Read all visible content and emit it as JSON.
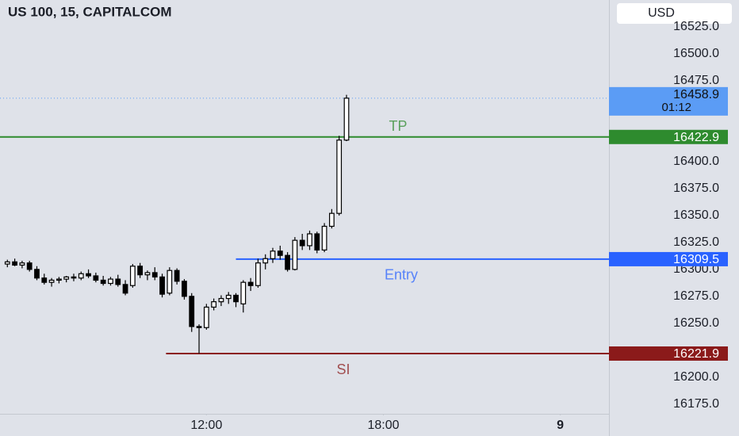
{
  "chart_data": {
    "type": "candlestick",
    "title": "US 100, 15, CAPITALCOM",
    "currency": "USD",
    "x": [
      5.25,
      5.5,
      5.75,
      6,
      6.25,
      6.5,
      6.75,
      7,
      7.25,
      7.5,
      7.75,
      8,
      8.25,
      8.5,
      8.75,
      9,
      9.25,
      9.5,
      9.75,
      10,
      10.25,
      10.5,
      10.75,
      11,
      11.25,
      11.5,
      11.75,
      12,
      12.25,
      12.5,
      12.75,
      13,
      13.25,
      13.5,
      13.75,
      14,
      14.25,
      14.5,
      14.75,
      15,
      15.25,
      15.5,
      15.75,
      16,
      16.25,
      16.5,
      16.75
    ],
    "open": [
      16305,
      16307,
      16304,
      16306,
      16300,
      16292,
      16288,
      16290,
      16291,
      16293,
      16292,
      16296,
      16294,
      16290,
      16287,
      16291,
      16286,
      16285,
      16303,
      16295,
      16297,
      16293,
      16278,
      16299,
      16289,
      16275,
      16247,
      16246,
      16265,
      16270,
      16273,
      16276,
      16268,
      16288,
      16285,
      16306,
      16310,
      16317,
      16313,
      16300,
      16327,
      16322,
      16333,
      16318,
      16340,
      16352,
      16420
    ],
    "high": [
      16309,
      16310,
      16308,
      16308,
      16303,
      16296,
      16292,
      16293,
      16294,
      16296,
      16298,
      16300,
      16297,
      16294,
      16293,
      16295,
      16290,
      16305,
      16306,
      16299,
      16302,
      16296,
      16302,
      16301,
      16291,
      16278,
      16249,
      16268,
      16273,
      16276,
      16279,
      16278,
      16290,
      16292,
      16310,
      16314,
      16320,
      16322,
      16316,
      16330,
      16333,
      16336,
      16335,
      16343,
      16356,
      16424,
      16462
    ],
    "low": [
      16302,
      16303,
      16301,
      16298,
      16290,
      16286,
      16284,
      16287,
      16288,
      16289,
      16290,
      16292,
      16288,
      16285,
      16285,
      16284,
      16276,
      16283,
      16292,
      16290,
      16290,
      16274,
      16276,
      16286,
      16272,
      16242,
      16222,
      16244,
      16262,
      16266,
      16268,
      16265,
      16260,
      16280,
      16283,
      16300,
      16306,
      16309,
      16298,
      16299,
      16318,
      16318,
      16315,
      16316,
      16338,
      16350,
      16419
    ],
    "close": [
      16307,
      16304,
      16306,
      16300,
      16292,
      16288,
      16290,
      16291,
      16293,
      16292,
      16296,
      16294,
      16290,
      16287,
      16291,
      16286,
      16278,
      16303,
      16295,
      16297,
      16293,
      16277,
      16299,
      16289,
      16275,
      16247,
      16246,
      16265,
      16270,
      16273,
      16276,
      16270,
      16288,
      16285,
      16306,
      16310,
      16317,
      16313,
      16300,
      16327,
      16322,
      16333,
      16318,
      16340,
      16352,
      16420,
      16458.9
    ],
    "up_color": "#ffffff",
    "down_color": "#000000",
    "xlim": [
      5,
      25.65
    ],
    "xticks": [
      {
        "value": 12,
        "label": "12:00"
      },
      {
        "value": 18,
        "label": "18:00"
      },
      {
        "value": 24,
        "label": "9"
      }
    ],
    "ylim": [
      16166,
      16550
    ],
    "yticks": [
      {
        "value": 16525,
        "label": "16525.0"
      },
      {
        "value": 16500,
        "label": "16500.0"
      },
      {
        "value": 16475,
        "label": "16475.0"
      },
      {
        "value": 16400,
        "label": "16400.0"
      },
      {
        "value": 16375,
        "label": "16375.0"
      },
      {
        "value": 16350,
        "label": "16350.0"
      },
      {
        "value": 16325,
        "label": "16325.0"
      },
      {
        "value": 16300,
        "label": "16300.0"
      },
      {
        "value": 16275,
        "label": "16275.0"
      },
      {
        "value": 16250,
        "label": "16250.0"
      },
      {
        "value": 16200,
        "label": "16200.0"
      },
      {
        "value": 16175,
        "label": "16175.0"
      }
    ],
    "grid": false,
    "last_price": 16458.9,
    "countdown": "01:12",
    "last_color": "#5b9cf5",
    "levels": [
      {
        "name": "TP",
        "value": 16422.9,
        "color": "#2e8b2e",
        "start": 5
      },
      {
        "name": "Entry",
        "value": 16309.5,
        "color": "#2962ff",
        "start": 13
      },
      {
        "name": "SI",
        "value": 16221.9,
        "color": "#8b1a1a",
        "start": 10.63
      }
    ]
  }
}
